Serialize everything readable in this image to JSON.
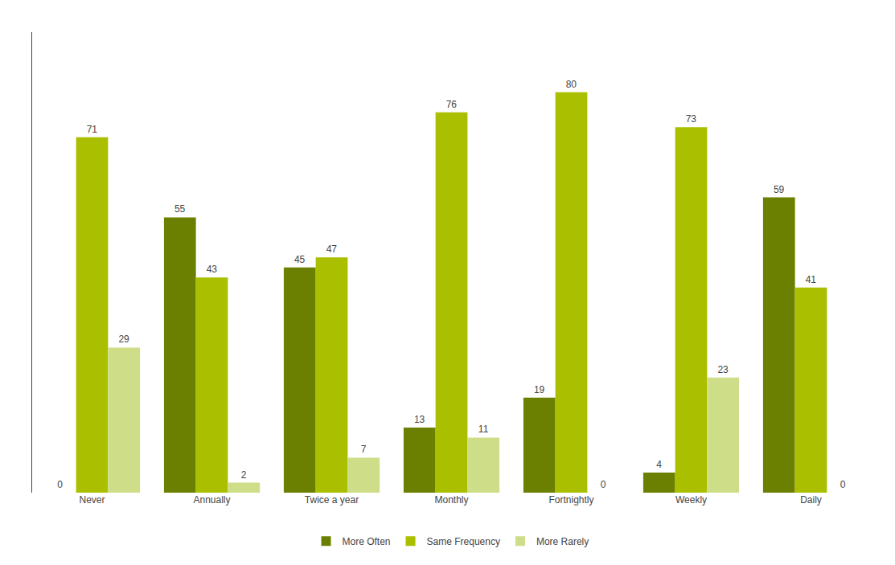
{
  "chart_data": {
    "type": "bar",
    "categories": [
      "Never",
      "Annually",
      "Twice a year",
      "Monthly",
      "Fortnightly",
      "Weekly",
      "Daily"
    ],
    "series": [
      {
        "name": "More Often",
        "color": "#6b8000",
        "values": [
          0,
          55,
          45,
          13,
          19,
          4,
          59
        ]
      },
      {
        "name": "Same Frequency",
        "color": "#aabf00",
        "values": [
          71,
          43,
          47,
          76,
          80,
          73,
          41
        ]
      },
      {
        "name": "More Rarely",
        "color": "#cedd88",
        "values": [
          29,
          2,
          7,
          11,
          0,
          23,
          0
        ]
      }
    ],
    "ylim": [
      0,
      92
    ],
    "grid": false,
    "legend": "bottom",
    "data_labels": true,
    "tick_labels": "x"
  }
}
